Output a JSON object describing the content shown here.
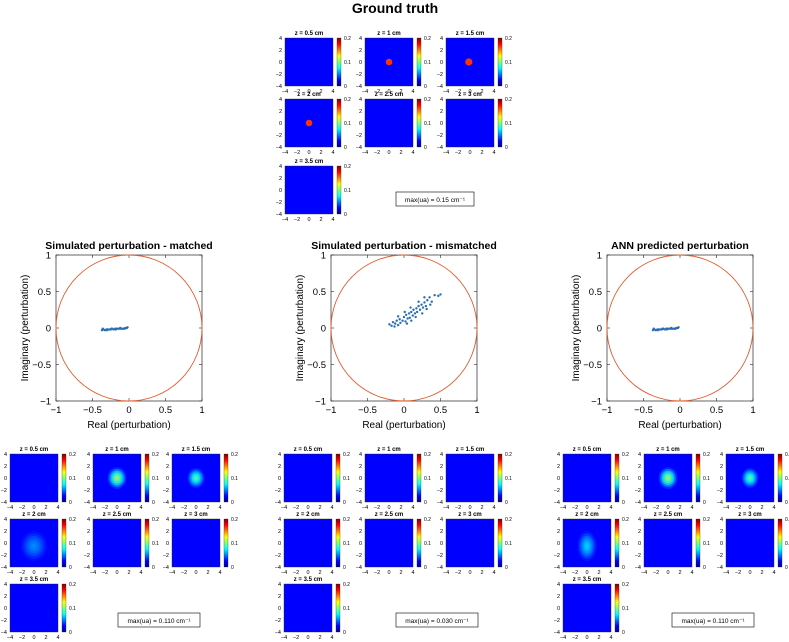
{
  "figure_title": "Ground truth",
  "colorbar_ticks": [
    "0",
    "0.1",
    "0.2"
  ],
  "map_ticks": [
    "−4",
    "−2",
    "0",
    "2",
    "4"
  ],
  "panel_titles": [
    "z = 0.5 cm",
    "z = 1 cm",
    "z = 1.5 cm",
    "z = 2 cm",
    "z = 2.5 cm",
    "z = 3 cm",
    "z = 3.5 cm"
  ],
  "max_labels": {
    "ground_truth": "max(ua) = 0.15 cm⁻¹",
    "matched": "max(ua) = 0.110 cm⁻¹",
    "mismatched": "max(ua) = 0.030 cm⁻¹",
    "ann": "max(ua) = 0.110 cm⁻¹"
  },
  "chart_data": [
    {
      "type": "scatter",
      "title": "Simulated perturbation - matched",
      "xlabel": "Real (perturbation)",
      "ylabel": "Imaginary (perturbation)",
      "xlim": [
        -1,
        1
      ],
      "ylim": [
        -1,
        1
      ],
      "xticks": [
        "−1",
        "−0.5",
        "0",
        "0.5",
        "1"
      ],
      "yticks": [
        "−1",
        "−0.5",
        "0",
        "0.5",
        "1"
      ],
      "circle_radius": 1,
      "points": [
        [
          -0.37,
          -0.03
        ],
        [
          -0.35,
          -0.02
        ],
        [
          -0.33,
          -0.03
        ],
        [
          -0.31,
          -0.02
        ],
        [
          -0.29,
          -0.02
        ],
        [
          -0.27,
          -0.02
        ],
        [
          -0.25,
          -0.02
        ],
        [
          -0.23,
          -0.01
        ],
        [
          -0.21,
          -0.02
        ],
        [
          -0.19,
          -0.01
        ],
        [
          -0.17,
          -0.01
        ],
        [
          -0.15,
          -0.01
        ],
        [
          -0.13,
          -0.01
        ],
        [
          -0.11,
          -0.01
        ],
        [
          -0.09,
          -0.01
        ],
        [
          -0.07,
          -0.01
        ],
        [
          -0.05,
          0.0
        ],
        [
          -0.03,
          0.0
        ],
        [
          -0.36,
          -0.01
        ],
        [
          -0.3,
          -0.03
        ],
        [
          -0.24,
          -0.01
        ],
        [
          -0.18,
          -0.02
        ],
        [
          -0.12,
          0.0
        ],
        [
          -0.06,
          -0.01
        ],
        [
          -0.02,
          0.01
        ]
      ],
      "colors": {
        "points": "#2a6db5",
        "circle": "#e05a2a"
      }
    },
    {
      "type": "scatter",
      "title": "Simulated perturbation - mismatched",
      "xlabel": "Real (perturbation)",
      "ylabel": "Imaginary (perturbation)",
      "xlim": [
        -1,
        1
      ],
      "ylim": [
        -1,
        1
      ],
      "xticks": [
        "−1",
        "−0.5",
        "0",
        "0.5",
        "1"
      ],
      "yticks": [
        "−1",
        "−0.5",
        "0",
        "0.5",
        "1"
      ],
      "circle_radius": 1,
      "points": [
        [
          -0.2,
          0.05
        ],
        [
          -0.17,
          0.03
        ],
        [
          -0.15,
          0.08
        ],
        [
          -0.12,
          0.06
        ],
        [
          -0.1,
          0.1
        ],
        [
          -0.08,
          0.04
        ],
        [
          -0.06,
          0.12
        ],
        [
          -0.05,
          0.07
        ],
        [
          -0.02,
          0.1
        ],
        [
          0.0,
          0.15
        ],
        [
          0.02,
          0.09
        ],
        [
          0.03,
          0.18
        ],
        [
          0.05,
          0.13
        ],
        [
          0.07,
          0.2
        ],
        [
          0.08,
          0.14
        ],
        [
          0.1,
          0.22
        ],
        [
          0.12,
          0.17
        ],
        [
          0.13,
          0.25
        ],
        [
          0.15,
          0.2
        ],
        [
          0.17,
          0.27
        ],
        [
          0.18,
          0.22
        ],
        [
          0.2,
          0.3
        ],
        [
          0.22,
          0.25
        ],
        [
          0.24,
          0.32
        ],
        [
          0.26,
          0.28
        ],
        [
          0.28,
          0.35
        ],
        [
          0.3,
          0.3
        ],
        [
          0.32,
          0.38
        ],
        [
          0.35,
          0.42
        ],
        [
          0.38,
          0.36
        ],
        [
          0.42,
          0.45
        ],
        [
          0.47,
          0.44
        ],
        [
          0.5,
          0.46
        ],
        [
          -0.13,
          0.02
        ],
        [
          0.04,
          0.06
        ],
        [
          0.1,
          0.1
        ],
        [
          0.16,
          0.15
        ],
        [
          0.25,
          0.2
        ],
        [
          0.31,
          0.26
        ],
        [
          0.36,
          0.32
        ],
        [
          -0.08,
          0.16
        ],
        [
          0.01,
          0.22
        ],
        [
          0.09,
          0.28
        ],
        [
          0.2,
          0.36
        ],
        [
          0.28,
          0.42
        ]
      ],
      "colors": {
        "points": "#2a6db5",
        "circle": "#e05a2a"
      }
    },
    {
      "type": "scatter",
      "title": "ANN predicted perturbation",
      "xlabel": "Real (perturbation)",
      "ylabel": "Imaginary (perturbation)",
      "xlim": [
        -1,
        1
      ],
      "ylim": [
        -1,
        1
      ],
      "xticks": [
        "−1",
        "−0.5",
        "0",
        "0.5",
        "1"
      ],
      "yticks": [
        "−1",
        "−0.5",
        "0",
        "0.5",
        "1"
      ],
      "circle_radius": 1,
      "points": [
        [
          -0.37,
          -0.03
        ],
        [
          -0.35,
          -0.02
        ],
        [
          -0.33,
          -0.03
        ],
        [
          -0.31,
          -0.02
        ],
        [
          -0.29,
          -0.02
        ],
        [
          -0.27,
          -0.02
        ],
        [
          -0.25,
          -0.02
        ],
        [
          -0.23,
          -0.01
        ],
        [
          -0.21,
          -0.02
        ],
        [
          -0.19,
          -0.01
        ],
        [
          -0.17,
          -0.01
        ],
        [
          -0.15,
          -0.01
        ],
        [
          -0.13,
          -0.01
        ],
        [
          -0.11,
          -0.01
        ],
        [
          -0.09,
          -0.01
        ],
        [
          -0.07,
          -0.01
        ],
        [
          -0.05,
          0.0
        ],
        [
          -0.03,
          0.0
        ],
        [
          -0.36,
          -0.01
        ],
        [
          -0.3,
          -0.03
        ],
        [
          -0.24,
          -0.01
        ],
        [
          -0.18,
          -0.02
        ],
        [
          -0.12,
          0.0
        ],
        [
          -0.06,
          -0.01
        ],
        [
          -0.02,
          0.01
        ]
      ],
      "colors": {
        "points": "#2a6db5",
        "circle": "#e05a2a"
      }
    },
    {
      "type": "heatmap",
      "group": "ground_truth",
      "colormap": "jet",
      "clim": [
        0,
        0.2
      ],
      "xlim": [
        -4,
        4
      ],
      "ylim": [
        -4,
        4
      ],
      "panels": [
        {
          "title": "z = 0.5 cm",
          "blobs": []
        },
        {
          "title": "z = 1 cm",
          "blobs": [
            {
              "x": 0,
              "y": 0,
              "r": 0.55,
              "value": 0.15,
              "shape": "sharp"
            }
          ]
        },
        {
          "title": "z = 1.5 cm",
          "blobs": [
            {
              "x": -0.2,
              "y": 0,
              "r": 0.6,
              "value": 0.15,
              "shape": "sharp"
            }
          ]
        },
        {
          "title": "z = 2 cm",
          "blobs": [
            {
              "x": 0,
              "y": 0,
              "r": 0.55,
              "value": 0.15,
              "shape": "sharp"
            }
          ]
        },
        {
          "title": "z = 2.5 cm",
          "blobs": []
        },
        {
          "title": "z = 3 cm",
          "blobs": []
        },
        {
          "title": "z = 3.5 cm",
          "blobs": []
        }
      ]
    },
    {
      "type": "heatmap",
      "group": "matched",
      "colormap": "jet",
      "clim": [
        0,
        0.2
      ],
      "xlim": [
        -4,
        4
      ],
      "ylim": [
        -4,
        4
      ],
      "panels": [
        {
          "title": "z = 0.5 cm",
          "blobs": []
        },
        {
          "title": "z = 1 cm",
          "blobs": [
            {
              "x": 0,
              "y": 0,
              "rx": 1.0,
              "ry": 1.3,
              "value": 0.11,
              "shape": "soft"
            }
          ]
        },
        {
          "title": "z = 1.5 cm",
          "blobs": [
            {
              "x": 0,
              "y": 0,
              "rx": 0.9,
              "ry": 1.2,
              "value": 0.095,
              "shape": "soft"
            }
          ]
        },
        {
          "title": "z = 2 cm",
          "blobs": [
            {
              "x": 0,
              "y": -0.5,
              "rx": 1.4,
              "ry": 1.8,
              "value": 0.055,
              "shape": "soft"
            }
          ]
        },
        {
          "title": "z = 2.5 cm",
          "blobs": []
        },
        {
          "title": "z = 3 cm",
          "blobs": []
        },
        {
          "title": "z = 3.5 cm",
          "blobs": []
        }
      ]
    },
    {
      "type": "heatmap",
      "group": "mismatched",
      "colormap": "jet",
      "clim": [
        0,
        0.2
      ],
      "xlim": [
        -4,
        4
      ],
      "ylim": [
        -4,
        4
      ],
      "panels": [
        {
          "title": "z = 0.5 cm",
          "blobs": []
        },
        {
          "title": "z = 1 cm",
          "blobs": []
        },
        {
          "title": "z = 1.5 cm",
          "blobs": []
        },
        {
          "title": "z = 2 cm",
          "blobs": []
        },
        {
          "title": "z = 2.5 cm",
          "blobs": []
        },
        {
          "title": "z = 3 cm",
          "blobs": []
        },
        {
          "title": "z = 3.5 cm",
          "blobs": []
        }
      ]
    },
    {
      "type": "heatmap",
      "group": "ann",
      "colormap": "jet",
      "clim": [
        0,
        0.2
      ],
      "xlim": [
        -4,
        4
      ],
      "ylim": [
        -4,
        4
      ],
      "panels": [
        {
          "title": "z = 0.5 cm",
          "blobs": []
        },
        {
          "title": "z = 1 cm",
          "blobs": [
            {
              "x": 0,
              "y": 0,
              "rx": 1.0,
              "ry": 1.3,
              "value": 0.11,
              "shape": "soft"
            }
          ]
        },
        {
          "title": "z = 1.5 cm",
          "blobs": [
            {
              "x": 0,
              "y": 0,
              "rx": 0.9,
              "ry": 1.2,
              "value": 0.095,
              "shape": "soft"
            }
          ]
        },
        {
          "title": "z = 2 cm",
          "blobs": [
            {
              "x": 0,
              "y": -0.5,
              "rx": 1.0,
              "ry": 1.8,
              "value": 0.07,
              "shape": "soft"
            }
          ]
        },
        {
          "title": "z = 2.5 cm",
          "blobs": []
        },
        {
          "title": "z = 3 cm",
          "blobs": []
        },
        {
          "title": "z = 3.5 cm",
          "blobs": []
        }
      ]
    }
  ]
}
